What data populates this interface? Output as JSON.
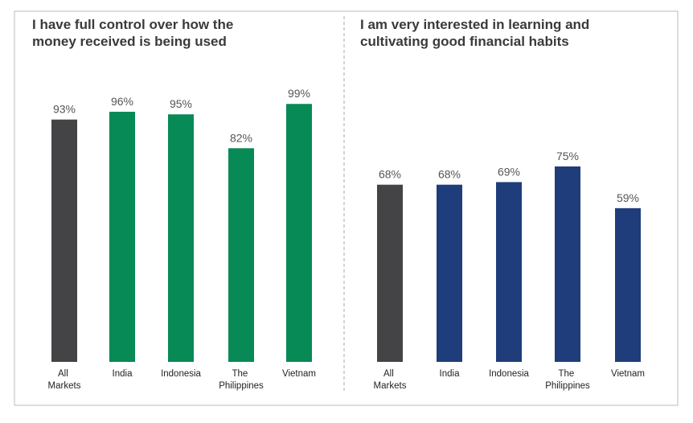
{
  "chart_data": [
    {
      "type": "bar",
      "title": "I have full control over how the money received is being used",
      "categories": [
        "All Markets",
        "India",
        "Indonesia",
        "The Philippines",
        "Vietnam"
      ],
      "values": [
        93,
        96,
        95,
        82,
        99
      ],
      "value_labels": [
        "93%",
        "96%",
        "95%",
        "82%",
        "99%"
      ],
      "colors": [
        "#444446",
        "#078a55",
        "#078a55",
        "#078a55",
        "#078a55"
      ],
      "ylim": [
        0,
        100
      ]
    },
    {
      "type": "bar",
      "title": "I am very interested in learning and cultivating good financial habits",
      "categories": [
        "All Markets",
        "India",
        "Indonesia",
        "The Philippines",
        "Vietnam"
      ],
      "values": [
        68,
        68,
        69,
        75,
        59
      ],
      "value_labels": [
        "68%",
        "68%",
        "69%",
        "75%",
        "59%"
      ],
      "colors": [
        "#444446",
        "#1f3d7a",
        "#1f3d7a",
        "#1f3d7a",
        "#1f3d7a"
      ],
      "ylim": [
        0,
        100
      ]
    }
  ]
}
